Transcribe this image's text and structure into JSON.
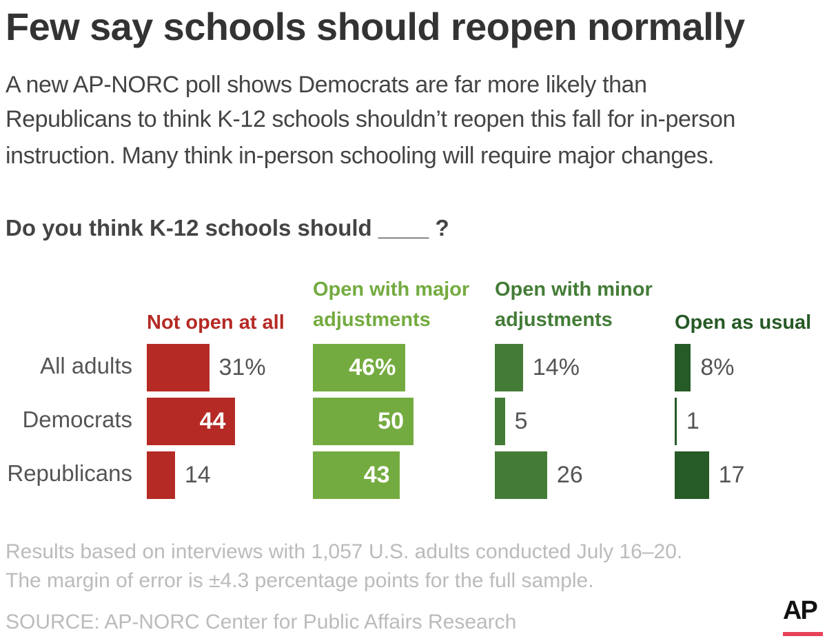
{
  "title": "Few say schools should reopen normally",
  "subtitle": [
    "A new AP-NORC poll shows Democrats are far more likely than",
    "Republicans to think K-12 schools shouldn’t reopen this fall for in-person",
    "instruction. Many think in-person schooling will require major changes."
  ],
  "chart_data": {
    "type": "bar",
    "title": "Do you think K-12 schools should ____ ?",
    "categories": [
      "All adults",
      "Democrats",
      "Republicans"
    ],
    "series": [
      {
        "name": "Not open at all",
        "color": "#b52a25",
        "values": [
          31,
          44,
          14
        ],
        "labels": [
          "31%",
          "44",
          "14"
        ]
      },
      {
        "name": "Open with major adjustments",
        "color": "#74ab40",
        "values": [
          46,
          50,
          43
        ],
        "labels": [
          "46%",
          "50",
          "43"
        ]
      },
      {
        "name": "Open with minor adjustments",
        "color": "#447c37",
        "values": [
          14,
          5,
          26
        ],
        "labels": [
          "14%",
          "5",
          "26"
        ]
      },
      {
        "name": "Open as usual",
        "color": "#265a26",
        "values": [
          8,
          1,
          17
        ],
        "labels": [
          "8%",
          "1",
          "17"
        ]
      }
    ],
    "unit": "%"
  },
  "footnote": [
    "Results based on interviews with 1,057 U.S. adults conducted July 16–20.",
    "The margin of error is ±4.3 percentage points for the full sample."
  ],
  "source": "SOURCE: AP-NORC Center for Public Affairs Research",
  "logo": {
    "text": "AP",
    "accent": "#e8415a"
  }
}
